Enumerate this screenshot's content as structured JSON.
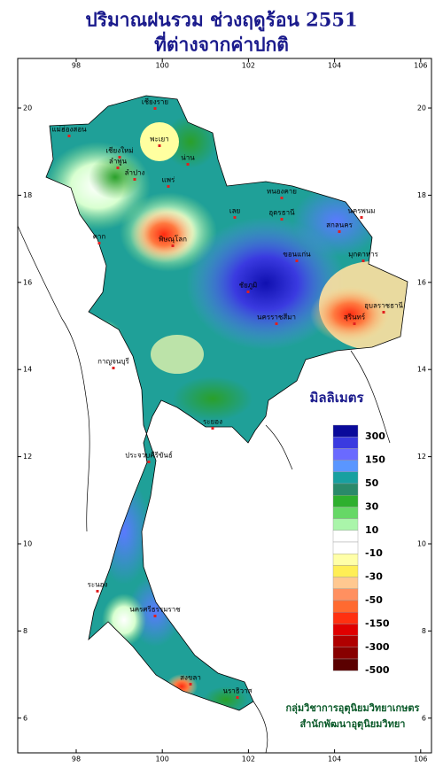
{
  "header": {
    "title": "ปริมาณฝนรวม ช่วงฤดูร้อน 2551",
    "subtitle": "ที่ต่างจากค่าปกติ"
  },
  "axes": {
    "lon_ticks": [
      98,
      100,
      102,
      104,
      106
    ],
    "lat_ticks": [
      20,
      18,
      16,
      14,
      12,
      10,
      8,
      6
    ]
  },
  "legend": {
    "title": "มิลลิเมตร",
    "labels": [
      "300",
      "150",
      "50",
      "30",
      "10",
      "-10",
      "-30",
      "-50",
      "-150",
      "-300",
      "-500"
    ],
    "colors": [
      "#0a0a9a",
      "#3a3ae0",
      "#6a6aff",
      "#5a96ff",
      "#18a0a0",
      "#2a8a6a",
      "#2eb02e",
      "#66d866",
      "#aaf5aa",
      "#ffffff",
      "#ffffff",
      "#ffffa8",
      "#ffee55",
      "#ffc890",
      "#ff9060",
      "#ff6a30",
      "#ff3010",
      "#e00000",
      "#b00000",
      "#880000",
      "#5a0000"
    ]
  },
  "provinces": [
    "เชียงราย",
    "พะเยา",
    "น่าน",
    "เชียงใหม่",
    "ลำพูน",
    "แม่ฮ่องสอน",
    "ลำปาง",
    "แพร่",
    "หนองคาย",
    "อุดรธานี",
    "นครพนม",
    "สกลนคร",
    "เลย",
    "ขอนแก่น",
    "มุกดาหาร",
    "ชัยภูมิ",
    "อุบลราชธานี",
    "นครราชสีมา",
    "พิษณุโลก",
    "ตาก",
    "กาญจนบุรี",
    "ประจวบคีรีขันธ์",
    "ระนอง",
    "นครศรีธรรมราช",
    "สงขลา",
    "นราธิวาส",
    "ระยอง",
    "สุรินทร์"
  ],
  "credits": [
    "กลุ่มวิชาการอุตุนิยมวิทยาเกษตร",
    "สำนักพัฒนาอุตุนิยมวิทยา"
  ]
}
